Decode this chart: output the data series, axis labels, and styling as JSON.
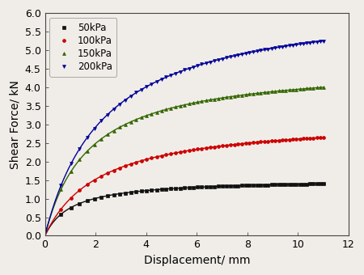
{
  "title": "",
  "xlabel": "Displacement/ mm",
  "ylabel": "Shear Force/ kN",
  "xlim": [
    0,
    12
  ],
  "ylim": [
    0.0,
    6.0
  ],
  "xticks": [
    0,
    2,
    4,
    6,
    8,
    10,
    12
  ],
  "yticks": [
    0.0,
    0.5,
    1.0,
    1.5,
    2.0,
    2.5,
    3.0,
    3.5,
    4.0,
    4.5,
    5.0,
    5.5,
    6.0
  ],
  "series": [
    {
      "label": "50kPa",
      "color": "#111111",
      "marker": "s",
      "A": 1.533,
      "B": 1.044,
      "x_end": 11.0,
      "n_markers": 60
    },
    {
      "label": "100kPa",
      "color": "#cc0000",
      "marker": "o",
      "A": 3.174,
      "B": 2.174,
      "x_end": 11.0,
      "n_markers": 60
    },
    {
      "label": "150kPa",
      "color": "#336600",
      "marker": "^",
      "A": 4.626,
      "B": 1.721,
      "x_end": 11.0,
      "n_markers": 60
    },
    {
      "label": "200kPa",
      "color": "#000099",
      "marker": "v",
      "A": 6.373,
      "B": 2.354,
      "x_end": 11.0,
      "n_markers": 60
    }
  ],
  "figsize": [
    4.5,
    3.4
  ],
  "dpi": 100,
  "bg_color": "#f0ede8"
}
